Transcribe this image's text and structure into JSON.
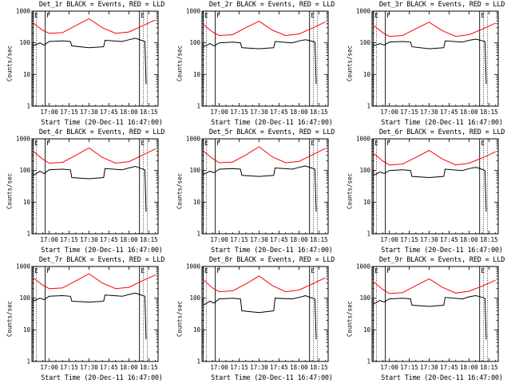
{
  "axis": {
    "ylabel": "Counts/sec",
    "yscale": "log",
    "ylim": [
      1,
      1000
    ],
    "ytick_labels": [
      "1",
      "10",
      "100",
      "1000"
    ],
    "xlabel": "Start Time (20-Dec-11 16:47:00)",
    "xlim": [
      "16:47",
      "18:22"
    ],
    "xtick_labels": [
      "17:00",
      "17:15",
      "17:30",
      "17:45",
      "18:00",
      "18:15"
    ]
  },
  "flags": [
    {
      "label": "E",
      "time": "16:48"
    },
    {
      "label": "F",
      "time": "16:57"
    },
    {
      "label": "E",
      "time": "18:08"
    }
  ],
  "colors": {
    "events": "#000000",
    "lld": "#ff0000",
    "axes": "#000000"
  },
  "chart_data": [
    {
      "type": "line",
      "title": "Det_1r BLACK = Events, RED = LLD",
      "series": [
        {
          "color": "#000000",
          "x": [
            "16:48",
            "16:53",
            "16:56",
            "17:00",
            "17:10",
            "17:16",
            "17:17",
            "17:30",
            "17:41",
            "17:42",
            "17:55",
            "18:00",
            "18:05",
            "18:07",
            "18:12",
            "18:13"
          ],
          "y": [
            80,
            100,
            85,
            110,
            115,
            110,
            80,
            70,
            75,
            120,
            110,
            125,
            140,
            130,
            110,
            5
          ]
        },
        {
          "color": "#ff0000",
          "x": [
            "16:48",
            "16:55",
            "17:00",
            "17:10",
            "17:20",
            "17:30",
            "17:40",
            "17:50",
            "18:00",
            "18:10",
            "18:20"
          ],
          "y": [
            420,
            250,
            200,
            210,
            350,
            580,
            300,
            200,
            220,
            340,
            530
          ]
        }
      ]
    },
    {
      "type": "line",
      "title": "Det_2r BLACK = Events, RED = LLD",
      "series": [
        {
          "color": "#000000",
          "x": [
            "16:48",
            "16:53",
            "16:56",
            "17:00",
            "17:10",
            "17:16",
            "17:17",
            "17:30",
            "17:41",
            "17:42",
            "17:55",
            "18:00",
            "18:05",
            "18:07",
            "18:12",
            "18:13"
          ],
          "y": [
            75,
            95,
            80,
            100,
            105,
            100,
            70,
            65,
            70,
            110,
            100,
            115,
            125,
            120,
            105,
            5
          ]
        },
        {
          "color": "#ff0000",
          "x": [
            "16:48",
            "16:55",
            "17:00",
            "17:10",
            "17:20",
            "17:30",
            "17:40",
            "17:50",
            "18:00",
            "18:10",
            "18:20"
          ],
          "y": [
            380,
            220,
            170,
            180,
            300,
            480,
            250,
            170,
            190,
            290,
            460
          ]
        }
      ]
    },
    {
      "type": "line",
      "title": "Det_3r BLACK = Events, RED = LLD",
      "series": [
        {
          "color": "#000000",
          "x": [
            "16:48",
            "16:53",
            "16:56",
            "17:00",
            "17:10",
            "17:16",
            "17:17",
            "17:30",
            "17:41",
            "17:42",
            "17:55",
            "18:00",
            "18:05",
            "18:07",
            "18:12",
            "18:13"
          ],
          "y": [
            80,
            95,
            85,
            105,
            110,
            105,
            75,
            65,
            70,
            115,
            105,
            120,
            130,
            125,
            110,
            5
          ]
        },
        {
          "color": "#ff0000",
          "x": [
            "16:48",
            "16:55",
            "17:00",
            "17:10",
            "17:20",
            "17:30",
            "17:40",
            "17:50",
            "18:00",
            "18:10",
            "18:20"
          ],
          "y": [
            360,
            210,
            160,
            170,
            280,
            450,
            240,
            160,
            180,
            270,
            420
          ]
        }
      ]
    },
    {
      "type": "line",
      "title": "Det_4r BLACK = Events, RED = LLD",
      "series": [
        {
          "color": "#000000",
          "x": [
            "16:48",
            "16:53",
            "16:56",
            "17:00",
            "17:10",
            "17:16",
            "17:17",
            "17:30",
            "17:41",
            "17:42",
            "17:55",
            "18:00",
            "18:05",
            "18:07",
            "18:12",
            "18:13"
          ],
          "y": [
            70,
            95,
            80,
            105,
            110,
            105,
            60,
            55,
            60,
            115,
            105,
            120,
            135,
            125,
            105,
            5
          ]
        },
        {
          "color": "#ff0000",
          "x": [
            "16:48",
            "16:55",
            "17:00",
            "17:10",
            "17:20",
            "17:30",
            "17:40",
            "17:50",
            "18:00",
            "18:10",
            "18:20"
          ],
          "y": [
            400,
            230,
            170,
            180,
            300,
            520,
            260,
            170,
            190,
            300,
            480
          ]
        }
      ]
    },
    {
      "type": "line",
      "title": "Det_5r BLACK = Events, RED = LLD",
      "series": [
        {
          "color": "#000000",
          "x": [
            "16:48",
            "16:53",
            "16:56",
            "17:00",
            "17:10",
            "17:16",
            "17:17",
            "17:30",
            "17:41",
            "17:42",
            "17:55",
            "18:00",
            "18:05",
            "18:07",
            "18:12",
            "18:13"
          ],
          "y": [
            75,
            95,
            85,
            110,
            115,
            110,
            70,
            65,
            70,
            120,
            110,
            125,
            140,
            130,
            110,
            5
          ]
        },
        {
          "color": "#ff0000",
          "x": [
            "16:48",
            "16:55",
            "17:00",
            "17:10",
            "17:20",
            "17:30",
            "17:40",
            "17:50",
            "18:00",
            "18:10",
            "18:20"
          ],
          "y": [
            410,
            240,
            175,
            185,
            310,
            560,
            270,
            175,
            195,
            310,
            500
          ]
        }
      ]
    },
    {
      "type": "line",
      "title": "Det_6r BLACK = Events, RED = LLD",
      "series": [
        {
          "color": "#000000",
          "x": [
            "16:48",
            "16:53",
            "16:56",
            "17:00",
            "17:10",
            "17:16",
            "17:17",
            "17:30",
            "17:41",
            "17:42",
            "17:55",
            "18:00",
            "18:05",
            "18:07",
            "18:12",
            "18:13"
          ],
          "y": [
            70,
            90,
            80,
            100,
            105,
            100,
            65,
            60,
            65,
            110,
            100,
            115,
            125,
            120,
            100,
            5
          ]
        },
        {
          "color": "#ff0000",
          "x": [
            "16:48",
            "16:55",
            "17:00",
            "17:10",
            "17:20",
            "17:30",
            "17:40",
            "17:50",
            "18:00",
            "18:10",
            "18:20"
          ],
          "y": [
            350,
            200,
            150,
            160,
            260,
            430,
            230,
            150,
            170,
            250,
            390
          ]
        }
      ]
    },
    {
      "type": "line",
      "title": "Det_7r BLACK = Events, RED = LLD",
      "series": [
        {
          "color": "#000000",
          "x": [
            "16:48",
            "16:53",
            "16:56",
            "17:00",
            "17:10",
            "17:16",
            "17:17",
            "17:30",
            "17:41",
            "17:42",
            "17:55",
            "18:00",
            "18:05",
            "18:07",
            "18:12",
            "18:13"
          ],
          "y": [
            80,
            100,
            90,
            115,
            120,
            115,
            80,
            75,
            80,
            125,
            115,
            130,
            145,
            135,
            115,
            5
          ]
        },
        {
          "color": "#ff0000",
          "x": [
            "16:48",
            "16:55",
            "17:00",
            "17:10",
            "17:20",
            "17:30",
            "17:40",
            "17:50",
            "18:00",
            "18:10",
            "18:20"
          ],
          "y": [
            430,
            260,
            200,
            210,
            350,
            590,
            300,
            200,
            220,
            350,
            540
          ]
        }
      ]
    },
    {
      "type": "line",
      "title": "Det_8r BLACK = Events, RED = LLD",
      "series": [
        {
          "color": "#000000",
          "x": [
            "16:48",
            "16:53",
            "16:56",
            "17:00",
            "17:10",
            "17:16",
            "17:17",
            "17:30",
            "17:41",
            "17:42",
            "17:55",
            "18:00",
            "18:05",
            "18:07",
            "18:12",
            "18:13"
          ],
          "y": [
            60,
            80,
            70,
            95,
            100,
            95,
            40,
            35,
            40,
            100,
            95,
            105,
            120,
            110,
            95,
            5
          ]
        },
        {
          "color": "#ff0000",
          "x": [
            "16:48",
            "16:55",
            "17:00",
            "17:10",
            "17:20",
            "17:30",
            "17:40",
            "17:50",
            "18:00",
            "18:10",
            "18:20"
          ],
          "y": [
            380,
            210,
            160,
            170,
            280,
            500,
            250,
            160,
            180,
            280,
            440
          ]
        }
      ]
    },
    {
      "type": "line",
      "title": "Det_9r BLACK = Events, RED = LLD",
      "series": [
        {
          "color": "#000000",
          "x": [
            "16:48",
            "16:53",
            "16:56",
            "17:00",
            "17:10",
            "17:16",
            "17:17",
            "17:30",
            "17:41",
            "17:42",
            "17:55",
            "18:00",
            "18:05",
            "18:07",
            "18:12",
            "18:13"
          ],
          "y": [
            65,
            85,
            75,
            95,
            100,
            95,
            60,
            55,
            60,
            105,
            95,
            110,
            120,
            115,
            100,
            5
          ]
        },
        {
          "color": "#ff0000",
          "x": [
            "16:48",
            "16:55",
            "17:00",
            "17:10",
            "17:20",
            "17:30",
            "17:40",
            "17:50",
            "18:00",
            "18:10",
            "18:20"
          ],
          "y": [
            330,
            190,
            140,
            150,
            250,
            410,
            220,
            145,
            165,
            240,
            370
          ]
        }
      ]
    }
  ]
}
